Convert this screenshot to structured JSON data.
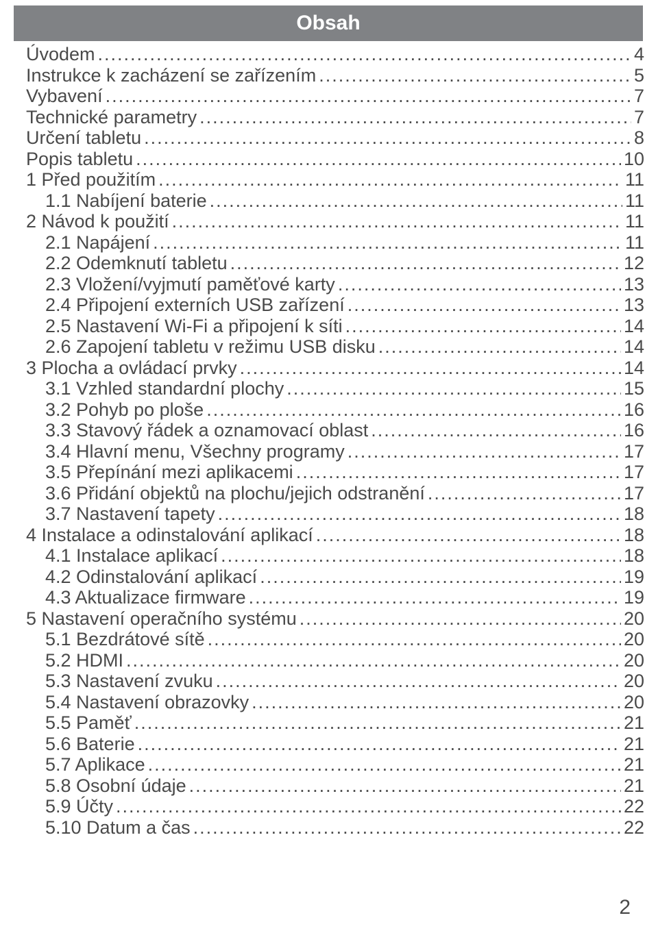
{
  "title": "Obsah",
  "page_number": "2",
  "colors": {
    "title_bar_bg": "#808285",
    "title_text": "#ffffff",
    "body_text": "#4a4a4a",
    "page_bg": "#ffffff"
  },
  "typography": {
    "title_fontsize_pt": 22,
    "body_fontsize_pt": 20,
    "font_family": "Arial"
  },
  "toc": [
    {
      "label": "Úvodem",
      "page": "4",
      "indent": 0
    },
    {
      "label": "Instrukce k zacházení se zařízením",
      "page": "5",
      "indent": 0
    },
    {
      "label": "Vybavení",
      "page": "7",
      "indent": 0
    },
    {
      "label": "Technické parametry",
      "page": "7",
      "indent": 0
    },
    {
      "label": "Určení tabletu",
      "page": "8",
      "indent": 0
    },
    {
      "label": "Popis tabletu",
      "page": "10",
      "indent": 0
    },
    {
      "label": "1 Před použitím",
      "page": "11",
      "indent": 0
    },
    {
      "label": "1.1 Nabíjení baterie",
      "page": "11",
      "indent": 1
    },
    {
      "label": "2 Návod k použití",
      "page": "11",
      "indent": 0
    },
    {
      "label": "2.1 Napájení",
      "page": "11",
      "indent": 1
    },
    {
      "label": "2.2 Odemknutí tabletu",
      "page": "12",
      "indent": 1
    },
    {
      "label": "2.3 Vložení/vyjmutí paměťové karty",
      "page": "13",
      "indent": 1
    },
    {
      "label": "2.4 Připojení externích USB zařízení",
      "page": "13",
      "indent": 1
    },
    {
      "label": "2.5 Nastavení Wi-Fi a připojení k síti",
      "page": "14",
      "indent": 1
    },
    {
      "label": "2.6 Zapojení tabletu v režimu USB disku",
      "page": "14",
      "indent": 1
    },
    {
      "label": "3 Plocha a ovládací prvky",
      "page": "14",
      "indent": 0
    },
    {
      "label": "3.1 Vzhled standardní plochy",
      "page": "15",
      "indent": 1
    },
    {
      "label": "3.2 Pohyb po ploše",
      "page": "16",
      "indent": 1
    },
    {
      "label": "3.3 Stavový řádek a oznamovací oblast",
      "page": "16",
      "indent": 1
    },
    {
      "label": "3.4 Hlavní menu, Všechny programy",
      "page": "17",
      "indent": 1
    },
    {
      "label": "3.5 Přepínání mezi aplikacemi",
      "page": "17",
      "indent": 1
    },
    {
      "label": "3.6 Přidání objektů na plochu/jejich odstranění",
      "page": "17",
      "indent": 1
    },
    {
      "label": "3.7 Nastavení tapety",
      "page": "18",
      "indent": 1
    },
    {
      "label": "4 Instalace a odinstalování aplikací",
      "page": "18",
      "indent": 0
    },
    {
      "label": "4.1 Instalace aplikací",
      "page": "18",
      "indent": 1
    },
    {
      "label": "4.2 Odinstalování aplikací",
      "page": "19",
      "indent": 1
    },
    {
      "label": "4.3 Aktualizace firmware",
      "page": "19",
      "indent": 1
    },
    {
      "label": "5 Nastavení operačního systému",
      "page": "20",
      "indent": 0
    },
    {
      "label": "5.1 Bezdrátové sítě",
      "page": "20",
      "indent": 1
    },
    {
      "label": "5.2 HDMI",
      "page": "20",
      "indent": 1
    },
    {
      "label": "5.3 Nastavení zvuku",
      "page": "20",
      "indent": 1
    },
    {
      "label": "5.4 Nastavení obrazovky",
      "page": "20",
      "indent": 1
    },
    {
      "label": "5.5 Paměť",
      "page": "21",
      "indent": 1
    },
    {
      "label": "5.6 Baterie",
      "page": "21",
      "indent": 1
    },
    {
      "label": "5.7 Aplikace",
      "page": "21",
      "indent": 1
    },
    {
      "label": "5.8 Osobní údaje",
      "page": "21",
      "indent": 1
    },
    {
      "label": "5.9 Účty",
      "page": "22",
      "indent": 1
    },
    {
      "label": "5.10 Datum a čas",
      "page": "22",
      "indent": 1
    }
  ]
}
